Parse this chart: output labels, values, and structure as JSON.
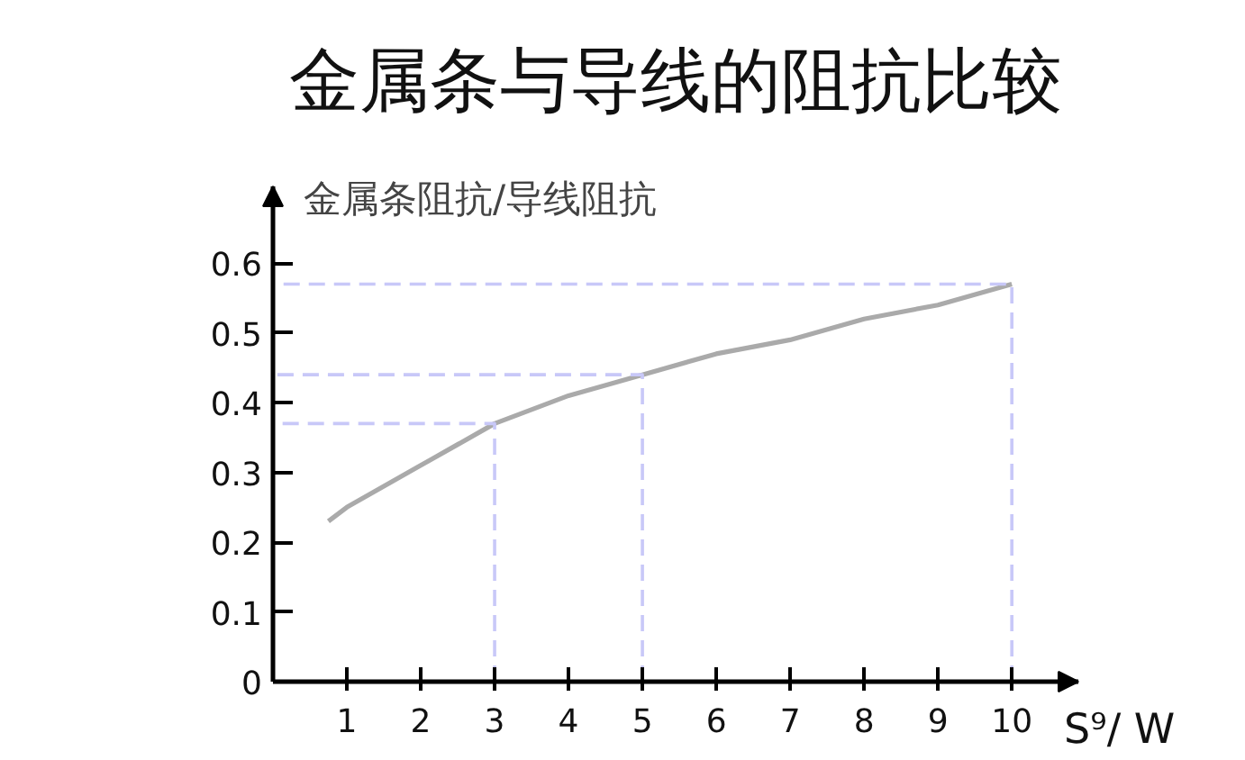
{
  "chart_data": {
    "type": "line",
    "title": "金属条与导线的阻抗比较",
    "xlabel": "S⁹/ W",
    "ylabel": "金属条阻抗/导线阻抗",
    "xlim": [
      0,
      10.9
    ],
    "ylim": [
      0,
      0.71
    ],
    "xticks": [
      1,
      2,
      3,
      4,
      5,
      6,
      7,
      8,
      9,
      10
    ],
    "yticks": [
      0,
      0.1,
      0.2,
      0.3,
      0.4,
      0.5,
      0.6
    ],
    "grid": false,
    "series": [
      {
        "color": "#aaaaaa",
        "line_style": "solid",
        "x": [
          0.75,
          1,
          1.5,
          2,
          2.5,
          3,
          4,
          5,
          6,
          7,
          8,
          9,
          10
        ],
        "values": [
          0.23,
          0.25,
          0.28,
          0.31,
          0.34,
          0.37,
          0.41,
          0.44,
          0.47,
          0.49,
          0.52,
          0.54,
          0.57
        ]
      },
      {
        "color": "#c8c8f8",
        "line_style": "dashed",
        "x": [
          3,
          3,
          0
        ],
        "values": [
          0,
          0.37,
          0.37
        ]
      },
      {
        "color": "#c8c8f8",
        "line_style": "dashed",
        "x": [
          5,
          5,
          0
        ],
        "values": [
          0,
          0.44,
          0.44
        ]
      },
      {
        "color": "#c8c8f8",
        "line_style": "dashed",
        "x": [
          10,
          10,
          0
        ],
        "values": [
          0,
          0.57,
          0.57
        ]
      }
    ]
  }
}
